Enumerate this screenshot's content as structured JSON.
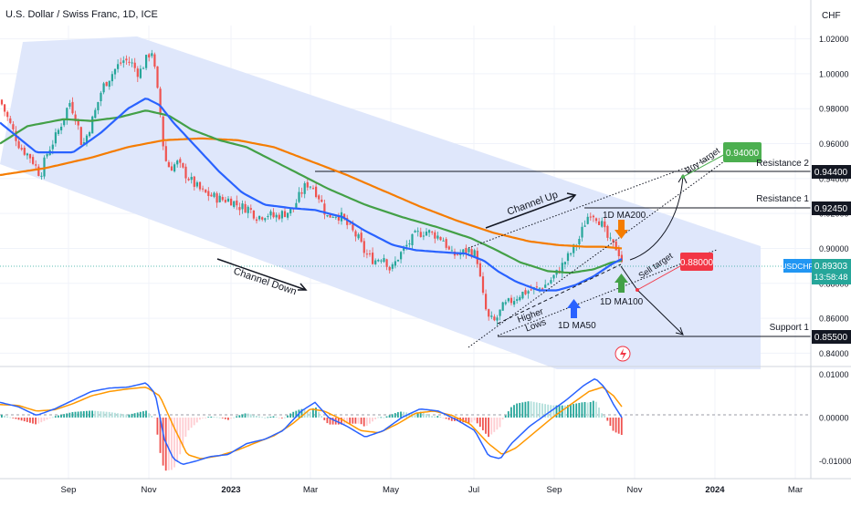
{
  "header": {
    "title": "U.S. Dollar / Swiss Franc, 1D, ICE",
    "currency": "CHF"
  },
  "colors": {
    "up": "#26a69a",
    "down": "#ef5350",
    "ma50": "#2962ff",
    "ma100": "#43a047",
    "ma200": "#f57c00",
    "channel_fill": "#dde6fb",
    "buy_target": "#4caf50",
    "sell_target": "#f23645",
    "symbol_badge": "#2196f3",
    "macd_line": "#2962ff",
    "signal_line": "#ff9800"
  },
  "chart_data": [
    {
      "type": "candlestick",
      "symbol": "USDCHF",
      "ylim": [
        0.835,
        1.025
      ],
      "y_ticks": [
        "1.02000",
        "1.00000",
        "0.98000",
        "0.96000",
        "0.94000",
        "0.92000",
        "0.90000",
        "0.88000",
        "0.86000",
        "0.84000"
      ],
      "x_ticks": [
        "Sep",
        "Nov",
        "2023",
        "Mar",
        "May",
        "Jul",
        "Sep",
        "Nov",
        "2024",
        "Mar"
      ],
      "price_path": [
        [
          0,
          0.985
        ],
        [
          12,
          0.97
        ],
        [
          22,
          0.958
        ],
        [
          34,
          0.952
        ],
        [
          44,
          0.942
        ],
        [
          52,
          0.955
        ],
        [
          62,
          0.965
        ],
        [
          70,
          0.975
        ],
        [
          76,
          0.984
        ],
        [
          84,
          0.974
        ],
        [
          90,
          0.958
        ],
        [
          96,
          0.966
        ],
        [
          104,
          0.978
        ],
        [
          112,
          0.992
        ],
        [
          120,
          0.998
        ],
        [
          128,
          1.004
        ],
        [
          136,
          1.008
        ],
        [
          144,
          1.006
        ],
        [
          152,
          1.0
        ],
        [
          160,
          1.008
        ],
        [
          166,
          1.014
        ],
        [
          170,
          1.0
        ],
        [
          176,
          0.975
        ],
        [
          180,
          0.952
        ],
        [
          186,
          0.946
        ],
        [
          194,
          0.949
        ],
        [
          204,
          0.942
        ],
        [
          212,
          0.937
        ],
        [
          222,
          0.932
        ],
        [
          232,
          0.93
        ],
        [
          242,
          0.928
        ],
        [
          252,
          0.928
        ],
        [
          262,
          0.924
        ],
        [
          272,
          0.923
        ],
        [
          282,
          0.918
        ],
        [
          292,
          0.92
        ],
        [
          300,
          0.918
        ],
        [
          310,
          0.92
        ],
        [
          320,
          0.922
        ],
        [
          330,
          0.932
        ],
        [
          336,
          0.937
        ],
        [
          342,
          0.936
        ],
        [
          350,
          0.929
        ],
        [
          358,
          0.918
        ],
        [
          366,
          0.92
        ],
        [
          374,
          0.918
        ],
        [
          382,
          0.912
        ],
        [
          392,
          0.906
        ],
        [
          400,
          0.897
        ],
        [
          410,
          0.893
        ],
        [
          420,
          0.896
        ],
        [
          428,
          0.887
        ],
        [
          436,
          0.895
        ],
        [
          446,
          0.902
        ],
        [
          456,
          0.908
        ],
        [
          466,
          0.91
        ],
        [
          476,
          0.908
        ],
        [
          486,
          0.905
        ],
        [
          494,
          0.896
        ],
        [
          504,
          0.897
        ],
        [
          514,
          0.899
        ],
        [
          522,
          0.896
        ],
        [
          528,
          0.875
        ],
        [
          534,
          0.86
        ],
        [
          542,
          0.858
        ],
        [
          550,
          0.866
        ],
        [
          560,
          0.87
        ],
        [
          570,
          0.874
        ],
        [
          580,
          0.876
        ],
        [
          590,
          0.877
        ],
        [
          600,
          0.88
        ],
        [
          610,
          0.886
        ],
        [
          618,
          0.892
        ],
        [
          626,
          0.898
        ],
        [
          634,
          0.905
        ],
        [
          640,
          0.914
        ],
        [
          646,
          0.921
        ],
        [
          652,
          0.919
        ],
        [
          658,
          0.915
        ],
        [
          664,
          0.907
        ],
        [
          670,
          0.902
        ],
        [
          676,
          0.9
        ],
        [
          681,
          0.8931
        ]
      ],
      "series": [
        {
          "name": "1D MA50",
          "points": [
            [
              0,
              0.972
            ],
            [
              40,
              0.955
            ],
            [
              80,
              0.955
            ],
            [
              110,
              0.966
            ],
            [
              140,
              0.98
            ],
            [
              160,
              0.986
            ],
            [
              175,
              0.982
            ],
            [
              190,
              0.972
            ],
            [
              215,
              0.958
            ],
            [
              240,
              0.944
            ],
            [
              265,
              0.932
            ],
            [
              290,
              0.925
            ],
            [
              320,
              0.923
            ],
            [
              345,
              0.922
            ],
            [
              375,
              0.918
            ],
            [
              400,
              0.91
            ],
            [
              430,
              0.902
            ],
            [
              455,
              0.899
            ],
            [
              480,
              0.898
            ],
            [
              510,
              0.897
            ],
            [
              530,
              0.893
            ],
            [
              545,
              0.887
            ],
            [
              565,
              0.881
            ],
            [
              590,
              0.876
            ],
            [
              610,
              0.876
            ],
            [
              630,
              0.879
            ],
            [
              650,
              0.884
            ],
            [
              670,
              0.891
            ],
            [
              681,
              0.894
            ]
          ]
        },
        {
          "name": "1D MA100",
          "points": [
            [
              0,
              0.96
            ],
            [
              30,
              0.97
            ],
            [
              70,
              0.974
            ],
            [
              100,
              0.973
            ],
            [
              130,
              0.975
            ],
            [
              160,
              0.979
            ],
            [
              185,
              0.976
            ],
            [
              210,
              0.968
            ],
            [
              240,
              0.962
            ],
            [
              270,
              0.958
            ],
            [
              300,
              0.95
            ],
            [
              330,
              0.942
            ],
            [
              360,
              0.934
            ],
            [
              400,
              0.925
            ],
            [
              440,
              0.918
            ],
            [
              480,
              0.912
            ],
            [
              515,
              0.906
            ],
            [
              540,
              0.9
            ],
            [
              570,
              0.892
            ],
            [
              600,
              0.887
            ],
            [
              625,
              0.886
            ],
            [
              650,
              0.888
            ],
            [
              670,
              0.892
            ],
            [
              681,
              0.893
            ]
          ]
        },
        {
          "name": "1D MA200",
          "points": [
            [
              0,
              0.942
            ],
            [
              50,
              0.946
            ],
            [
              100,
              0.952
            ],
            [
              140,
              0.958
            ],
            [
              180,
              0.962
            ],
            [
              220,
              0.963
            ],
            [
              260,
              0.962
            ],
            [
              300,
              0.958
            ],
            [
              340,
              0.95
            ],
            [
              380,
              0.942
            ],
            [
              420,
              0.933
            ],
            [
              460,
              0.924
            ],
            [
              500,
              0.916
            ],
            [
              540,
              0.909
            ],
            [
              580,
              0.904
            ],
            [
              610,
              0.902
            ],
            [
              640,
              0.901
            ],
            [
              660,
              0.901
            ],
            [
              681,
              0.9
            ]
          ]
        }
      ],
      "price_labels": [
        {
          "label": "Resistance 2",
          "value": "0.94400"
        },
        {
          "label": "Resistance 1",
          "value": "0.92450"
        },
        {
          "label": "Support 1",
          "value": "0.85500"
        },
        {
          "label": "USDCHF",
          "value": "0.89303",
          "countdown": "13:58:48"
        }
      ],
      "targets": [
        {
          "label": "Buy target",
          "value": "0.94000"
        },
        {
          "label": "Sell target",
          "value": "0.88000"
        }
      ],
      "annotations": [
        "Channel Down",
        "Channel Up",
        "Higher Lows",
        "1D MA200",
        "1D MA100",
        "1D MA50"
      ]
    },
    {
      "type": "macd",
      "ylim": [
        -0.0105,
        0.0105
      ],
      "y_ticks": [
        "0.01000",
        "0.00000",
        "-0.01000"
      ],
      "macd": [
        [
          0,
          0.0035
        ],
        [
          20,
          0.0025
        ],
        [
          40,
          0.0005
        ],
        [
          60,
          0.002
        ],
        [
          80,
          0.004
        ],
        [
          100,
          0.006
        ],
        [
          120,
          0.0068
        ],
        [
          140,
          0.007
        ],
        [
          160,
          0.008
        ],
        [
          170,
          0.0055
        ],
        [
          180,
          -0.005
        ],
        [
          190,
          -0.0095
        ],
        [
          200,
          -0.0108
        ],
        [
          215,
          -0.01
        ],
        [
          230,
          -0.009
        ],
        [
          250,
          -0.0085
        ],
        [
          270,
          -0.006
        ],
        [
          290,
          -0.005
        ],
        [
          310,
          -0.003
        ],
        [
          330,
          0.0015
        ],
        [
          345,
          0.0035
        ],
        [
          360,
          0.0
        ],
        [
          380,
          -0.002
        ],
        [
          400,
          -0.0045
        ],
        [
          420,
          -0.003
        ],
        [
          440,
          0.0
        ],
        [
          460,
          0.002
        ],
        [
          480,
          0.0015
        ],
        [
          500,
          -0.0005
        ],
        [
          520,
          -0.003
        ],
        [
          535,
          -0.0088
        ],
        [
          548,
          -0.0095
        ],
        [
          560,
          -0.006
        ],
        [
          580,
          -0.002
        ],
        [
          600,
          0.001
        ],
        [
          620,
          0.004
        ],
        [
          640,
          0.0075
        ],
        [
          652,
          0.009
        ],
        [
          662,
          0.007
        ],
        [
          672,
          0.003
        ],
        [
          681,
          0.0
        ]
      ],
      "signal": [
        [
          0,
          0.003
        ],
        [
          20,
          0.0028
        ],
        [
          40,
          0.0015
        ],
        [
          60,
          0.0018
        ],
        [
          80,
          0.0032
        ],
        [
          100,
          0.005
        ],
        [
          120,
          0.006
        ],
        [
          140,
          0.0066
        ],
        [
          160,
          0.007
        ],
        [
          175,
          0.005
        ],
        [
          190,
          -0.002
        ],
        [
          205,
          -0.0085
        ],
        [
          220,
          -0.0095
        ],
        [
          240,
          -0.0088
        ],
        [
          260,
          -0.0075
        ],
        [
          280,
          -0.0058
        ],
        [
          300,
          -0.0042
        ],
        [
          320,
          -0.0015
        ],
        [
          340,
          0.002
        ],
        [
          355,
          0.0015
        ],
        [
          375,
          -0.0005
        ],
        [
          395,
          -0.003
        ],
        [
          415,
          -0.0035
        ],
        [
          435,
          -0.0015
        ],
        [
          455,
          0.001
        ],
        [
          475,
          0.0015
        ],
        [
          495,
          0.0005
        ],
        [
          515,
          -0.0015
        ],
        [
          535,
          -0.006
        ],
        [
          550,
          -0.0085
        ],
        [
          565,
          -0.007
        ],
        [
          585,
          -0.0035
        ],
        [
          605,
          0.0
        ],
        [
          625,
          0.003
        ],
        [
          645,
          0.006
        ],
        [
          660,
          0.007
        ],
        [
          672,
          0.005
        ],
        [
          681,
          0.0025
        ]
      ]
    }
  ]
}
